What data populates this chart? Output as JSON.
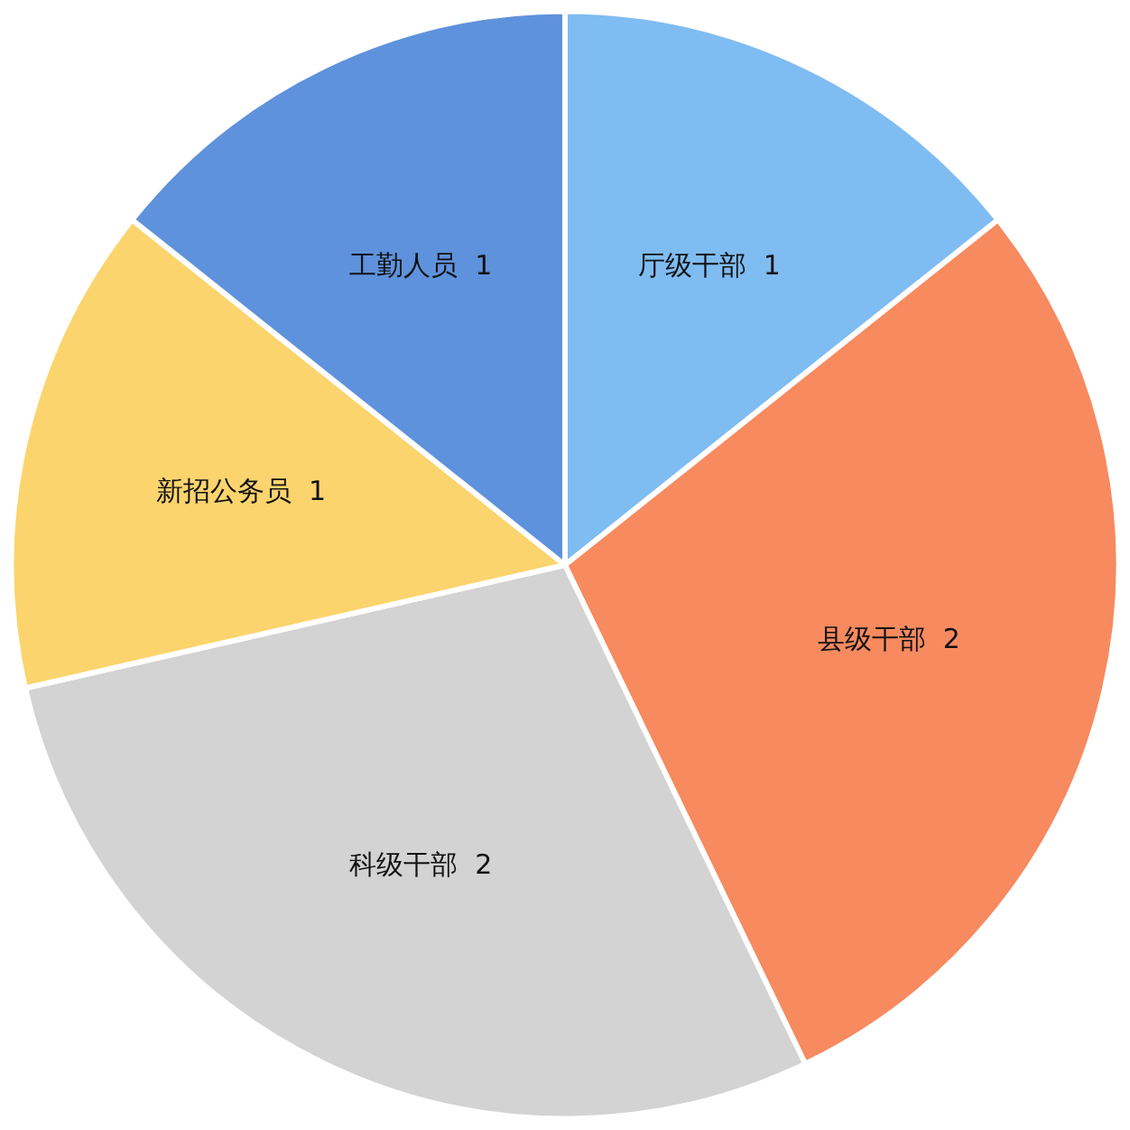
{
  "chart_data": {
    "type": "pie",
    "categories": [
      "厅级干部",
      "县级干部",
      "科级干部",
      "新招公务员",
      "工勤人员"
    ],
    "values": [
      1,
      2,
      2,
      1,
      1
    ],
    "colors": [
      "#7fbcf2",
      "#f78a5f",
      "#d3d3d3",
      "#fbd46e",
      "#5f92dc"
    ],
    "data_labels": true,
    "legend": false
  }
}
